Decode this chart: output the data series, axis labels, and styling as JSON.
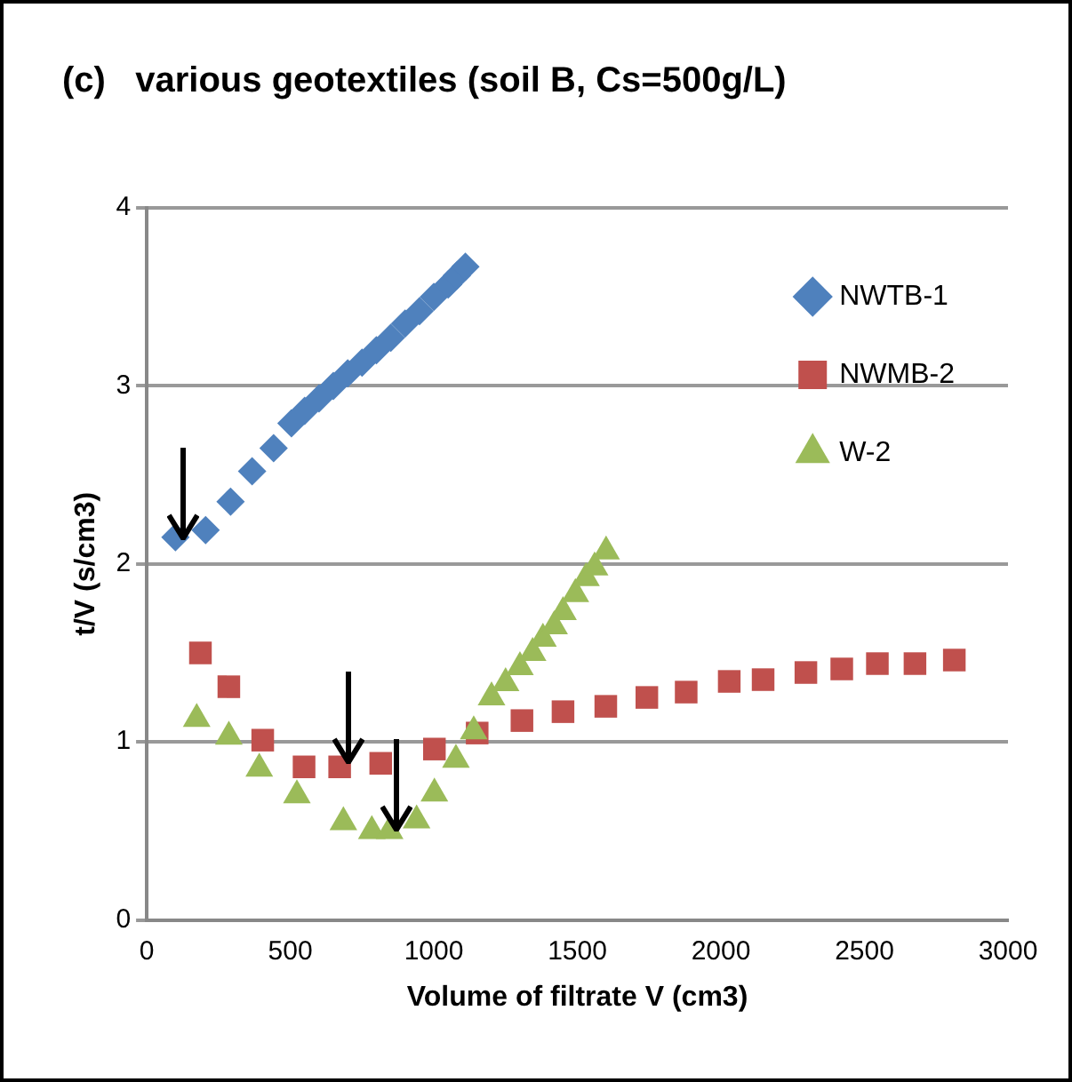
{
  "chart_data": {
    "type": "scatter",
    "title": "(c)   various geotextiles (soil B, Cs=500g/L)",
    "xlabel": "Volume of filtrate V (cm3)",
    "ylabel": "t/V (s/cm3)",
    "xlim": [
      0,
      3000
    ],
    "xticks": [
      0,
      500,
      1000,
      1500,
      2000,
      2500,
      3000
    ],
    "ylim": [
      0,
      4
    ],
    "yticks": [
      0,
      1,
      2,
      3,
      4
    ],
    "grid": "y",
    "legend": "top right",
    "series": [
      {
        "name": "NWTB-1",
        "color": "#4f81bd",
        "marker": "diamond",
        "x": [
          100,
          205,
          292,
          367,
          442,
          504,
          550,
          600,
          650,
          700,
          750,
          800,
          850,
          900,
          950,
          1000,
          1050,
          1080,
          1110
        ],
        "values": [
          2.15,
          2.19,
          2.35,
          2.52,
          2.65,
          2.79,
          2.86,
          2.93,
          3.0,
          3.07,
          3.13,
          3.2,
          3.27,
          3.35,
          3.42,
          3.5,
          3.57,
          3.62,
          3.67
        ]
      },
      {
        "name": "NWMB-2",
        "color": "#c0504d",
        "marker": "square",
        "x": [
          187,
          286,
          404,
          548,
          672,
          815,
          1002,
          1151,
          1307,
          1450,
          1599,
          1742,
          1879,
          2029,
          2147,
          2296,
          2421,
          2545,
          2676,
          2813
        ],
        "values": [
          1.5,
          1.31,
          1.01,
          0.86,
          0.86,
          0.88,
          0.96,
          1.05,
          1.12,
          1.17,
          1.2,
          1.25,
          1.28,
          1.34,
          1.35,
          1.39,
          1.41,
          1.44,
          1.44,
          1.46
        ]
      },
      {
        "name": "W-2",
        "color": "#9bbb59",
        "marker": "triangle",
        "x": [
          174,
          286,
          392,
          523,
          685,
          784,
          846,
          940,
          1002,
          1077,
          1139,
          1201,
          1250,
          1300,
          1344,
          1380,
          1419,
          1450,
          1493,
          1530,
          1560,
          1600
        ],
        "values": [
          1.13,
          1.03,
          0.85,
          0.7,
          0.55,
          0.5,
          0.5,
          0.56,
          0.71,
          0.9,
          1.06,
          1.25,
          1.33,
          1.42,
          1.5,
          1.58,
          1.65,
          1.73,
          1.83,
          1.92,
          1.98,
          2.07
        ]
      }
    ]
  }
}
